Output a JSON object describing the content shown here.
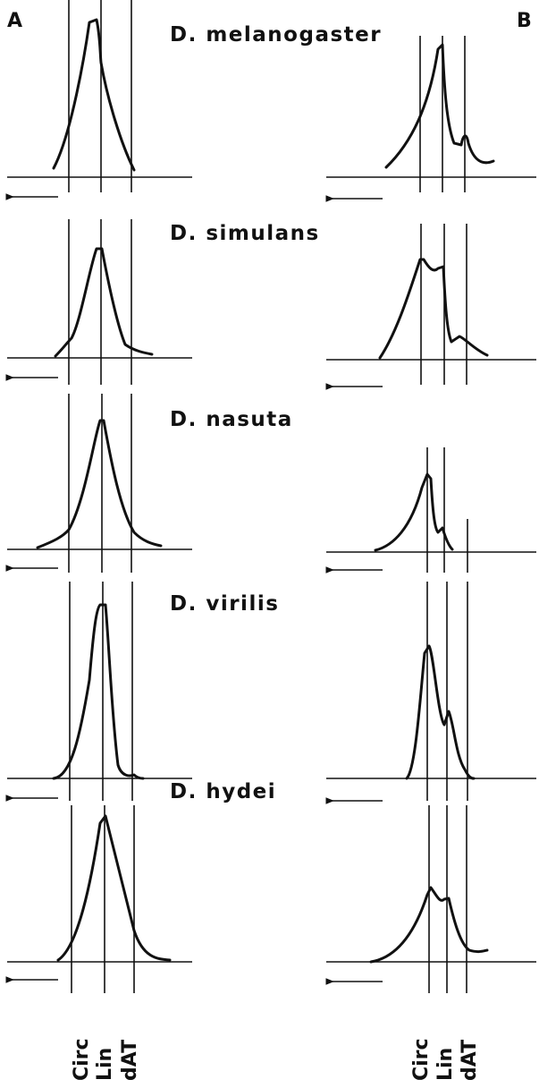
{
  "panels": [
    "A",
    "B"
  ],
  "species": [
    "D. melanogaster",
    "D. simulans",
    "D. nasuta",
    "D. virilis",
    "D. hydei"
  ],
  "markers": {
    "left": [
      "Circ",
      "Lin",
      "dAT"
    ],
    "right": [
      "Circ",
      "Lin",
      "dAT"
    ]
  }
}
